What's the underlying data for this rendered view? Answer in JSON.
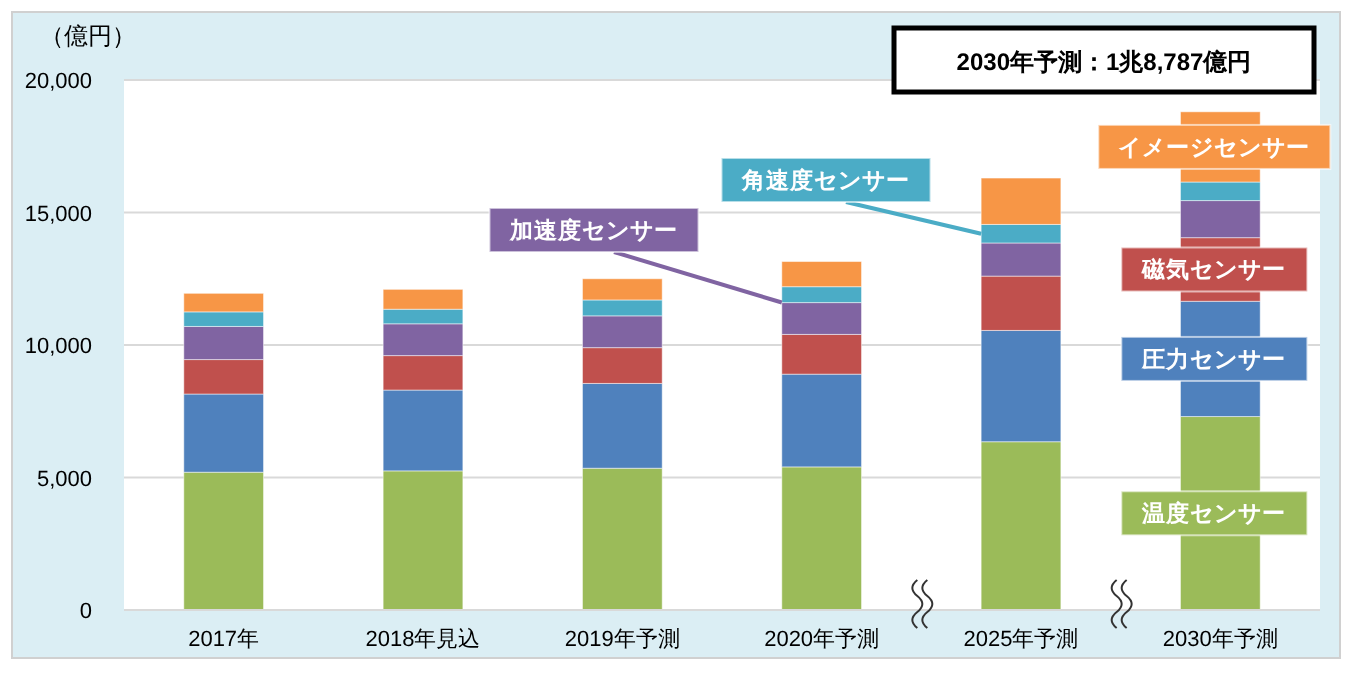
{
  "chart_data": {
    "type": "bar",
    "stacked": true,
    "ylabel": "（億円）",
    "categories": [
      "2017年",
      "2018年見込",
      "2019年予測",
      "2020年予測",
      "2025年予測",
      "2030年予測"
    ],
    "ylim": [
      0,
      20000
    ],
    "yticks": [
      {
        "value": 0,
        "label": "0"
      },
      {
        "value": 5000,
        "label": "5,000"
      },
      {
        "value": 10000,
        "label": "10,000"
      },
      {
        "value": 15000,
        "label": "15,000"
      },
      {
        "value": 20000,
        "label": "20,000"
      }
    ],
    "grid": "y",
    "series": [
      {
        "name": "温度センサー",
        "color": "#9bbb59",
        "values": [
          5200,
          5250,
          5350,
          5400,
          6350,
          7300
        ]
      },
      {
        "name": "圧力センサー",
        "color": "#4f81bd",
        "values": [
          2950,
          3050,
          3200,
          3500,
          4200,
          4350
        ]
      },
      {
        "name": "磁気センサー",
        "color": "#c0504d",
        "values": [
          1300,
          1300,
          1350,
          1500,
          2050,
          2400
        ]
      },
      {
        "name": "加速度センサー",
        "color": "#8064a2",
        "values": [
          1250,
          1200,
          1200,
          1200,
          1250,
          1400
        ]
      },
      {
        "name": "角速度センサー",
        "color": "#4bacc6",
        "values": [
          550,
          550,
          600,
          600,
          700,
          700
        ]
      },
      {
        "name": "イメージセンサー",
        "color": "#f79646",
        "values": [
          700,
          750,
          800,
          950,
          1750,
          2650
        ]
      }
    ],
    "annotations": [
      "2030年予測：1兆8,787億円"
    ]
  }
}
